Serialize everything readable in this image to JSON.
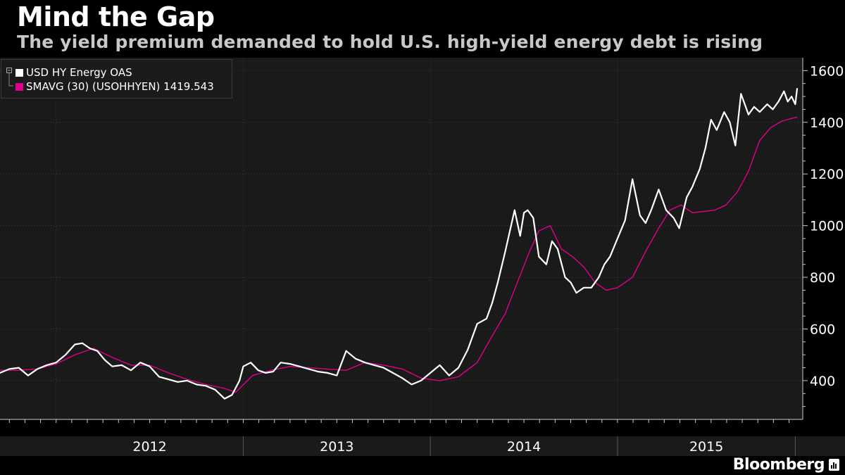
{
  "title": "Mind the Gap",
  "subtitle": "The yield premium demanded to hold U.S. high-yield energy debt is rising",
  "brand": "Bloomberg",
  "colors": {
    "background": "#000000",
    "plot_background": "#1a1a1a",
    "grid": "#3a3a3a",
    "series_oas": "#ffffff",
    "series_sma": "#e0008a"
  },
  "chart_data": {
    "type": "line",
    "title": "Mind the Gap",
    "subtitle": "The yield premium demanded to hold U.S. high-yield energy debt is rising",
    "xlabel": "",
    "ylabel": "",
    "x_tick_labels": [
      "2012",
      "2013",
      "2014",
      "2015"
    ],
    "y_ticks": [
      400,
      600,
      800,
      1000,
      1200,
      1400,
      1600
    ],
    "ylim": [
      250,
      1650
    ],
    "xlim": [
      2011.7,
      2015.99
    ],
    "y_axis_side": "right",
    "grid": true,
    "legend_position": "top-left",
    "series": [
      {
        "name": "USD HY Energy OAS",
        "color": "#ffffff",
        "x": [
          2011.7,
          2011.75,
          2011.8,
          2011.85,
          2011.9,
          2011.95,
          2012.0,
          2012.05,
          2012.1,
          2012.14,
          2012.18,
          2012.22,
          2012.26,
          2012.3,
          2012.35,
          2012.4,
          2012.45,
          2012.5,
          2012.55,
          2012.6,
          2012.65,
          2012.7,
          2012.75,
          2012.8,
          2012.85,
          2012.9,
          2012.94,
          2012.98,
          2013.0,
          2013.04,
          2013.08,
          2013.12,
          2013.16,
          2013.2,
          2013.25,
          2013.3,
          2013.35,
          2013.4,
          2013.45,
          2013.5,
          2013.55,
          2013.6,
          2013.65,
          2013.7,
          2013.75,
          2013.8,
          2013.85,
          2013.9,
          2013.95,
          2014.0,
          2014.05,
          2014.1,
          2014.15,
          2014.2,
          2014.25,
          2014.3,
          2014.33,
          2014.36,
          2014.4,
          2014.45,
          2014.48,
          2014.5,
          2014.52,
          2014.55,
          2014.58,
          2014.62,
          2014.65,
          2014.68,
          2014.72,
          2014.75,
          2014.78,
          2014.82,
          2014.86,
          2014.9,
          2014.93,
          2014.96,
          2015.0,
          2015.04,
          2015.08,
          2015.12,
          2015.15,
          2015.18,
          2015.22,
          2015.26,
          2015.3,
          2015.33,
          2015.37,
          2015.4,
          2015.44,
          2015.47,
          2015.5,
          2015.53,
          2015.57,
          2015.6,
          2015.63,
          2015.66,
          2015.7,
          2015.73,
          2015.76,
          2015.8,
          2015.83,
          2015.86,
          2015.89,
          2015.91,
          2015.93,
          2015.95,
          2015.96
        ],
        "values": [
          430,
          445,
          450,
          420,
          445,
          460,
          470,
          500,
          540,
          545,
          525,
          515,
          480,
          455,
          460,
          440,
          470,
          455,
          415,
          405,
          395,
          400,
          385,
          380,
          365,
          330,
          345,
          400,
          455,
          470,
          440,
          430,
          435,
          470,
          465,
          455,
          445,
          435,
          430,
          420,
          515,
          485,
          470,
          460,
          450,
          430,
          410,
          385,
          400,
          430,
          460,
          420,
          450,
          520,
          620,
          640,
          700,
          780,
          900,
          1060,
          960,
          1050,
          1060,
          1030,
          880,
          850,
          940,
          910,
          800,
          780,
          740,
          760,
          760,
          800,
          850,
          880,
          950,
          1020,
          1180,
          1040,
          1010,
          1060,
          1140,
          1060,
          1030,
          990,
          1110,
          1150,
          1220,
          1300,
          1410,
          1370,
          1440,
          1400,
          1310,
          1510,
          1430,
          1460,
          1440,
          1470,
          1450,
          1480,
          1520,
          1480,
          1500,
          1470,
          1530
        ]
      },
      {
        "name": "SMAVG (30) (USOHHYEN) 1419.543",
        "color": "#e0008a",
        "x": [
          2011.7,
          2011.8,
          2011.9,
          2012.0,
          2012.1,
          2012.2,
          2012.3,
          2012.4,
          2012.5,
          2012.6,
          2012.7,
          2012.8,
          2012.9,
          2012.96,
          2013.05,
          2013.15,
          2013.25,
          2013.35,
          2013.45,
          2013.55,
          2013.65,
          2013.75,
          2013.85,
          2013.95,
          2014.05,
          2014.15,
          2014.25,
          2014.32,
          2014.4,
          2014.47,
          2014.53,
          2014.58,
          2014.64,
          2014.7,
          2014.76,
          2014.82,
          2014.88,
          2014.94,
          2015.0,
          2015.08,
          2015.15,
          2015.22,
          2015.28,
          2015.34,
          2015.4,
          2015.46,
          2015.52,
          2015.58,
          2015.64,
          2015.7,
          2015.76,
          2015.82,
          2015.88,
          2015.93,
          2015.96
        ],
        "values": [
          440,
          440,
          445,
          465,
          500,
          525,
          490,
          460,
          460,
          430,
          405,
          385,
          370,
          355,
          420,
          440,
          455,
          450,
          445,
          440,
          470,
          460,
          445,
          410,
          400,
          415,
          470,
          560,
          660,
          790,
          900,
          980,
          1000,
          910,
          880,
          840,
          780,
          750,
          760,
          800,
          900,
          990,
          1060,
          1080,
          1050,
          1055,
          1060,
          1080,
          1130,
          1210,
          1330,
          1380,
          1405,
          1415,
          1419.5
        ]
      }
    ]
  }
}
